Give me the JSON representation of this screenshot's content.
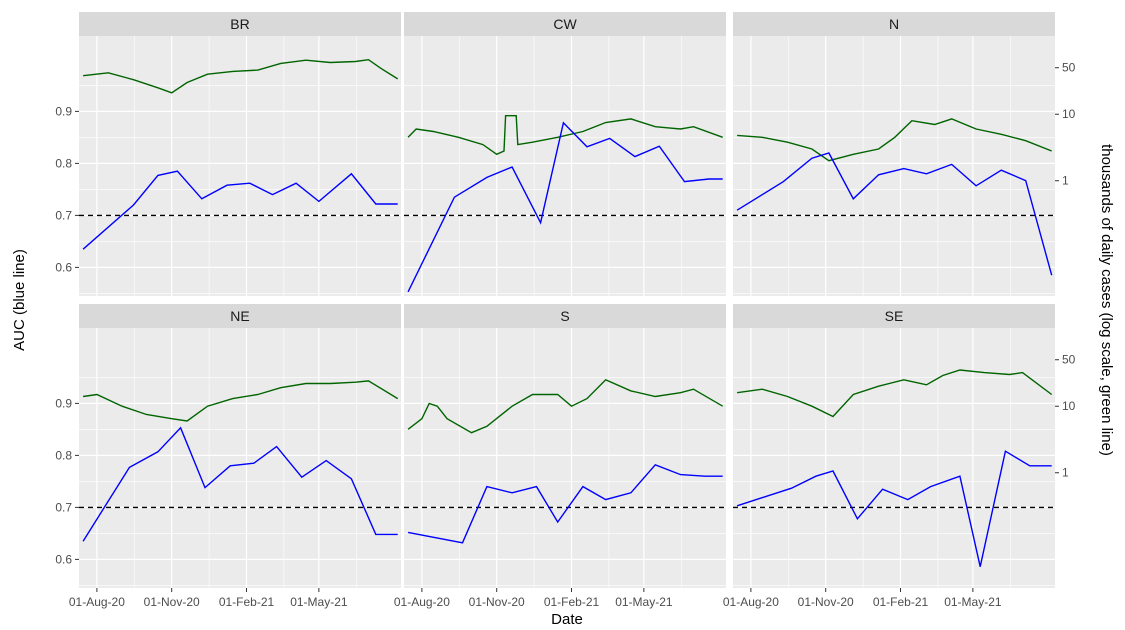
{
  "chart_data": {
    "type": "line",
    "xlabel": "Date",
    "ylabel_left": "AUC (blue line)",
    "ylabel_right": "thousands of daily cases (log scale, green line)",
    "x_ticks": [
      "01-Aug-20",
      "01-Nov-20",
      "01-Feb-21",
      "01-May-21"
    ],
    "x_range": [
      "2020-07-10",
      "2021-08-10"
    ],
    "y_left_ticks": [
      "0.6",
      "0.7",
      "0.8",
      "0.9"
    ],
    "y_left_range": [
      0.545,
      1.045
    ],
    "y_right_ticks": [
      "1",
      "10",
      "50"
    ],
    "y_right_scale": "log",
    "y_right_range": [
      0.0185,
      150
    ],
    "reference_line": {
      "y": 0.7,
      "style": "dashed",
      "color": "#000000"
    },
    "colors": {
      "auc": "#0000ff",
      "cases": "#006400",
      "panel_bg": "#ebebeb",
      "strip_bg": "#d9d9d9",
      "grid": "#ffffff"
    },
    "grid": true,
    "panels": [
      {
        "name": "BR",
        "auc": {
          "dates": [
            "2020-07-15",
            "2020-09-15",
            "2020-10-15",
            "2020-11-08",
            "2020-12-08",
            "2021-01-08",
            "2021-02-05",
            "2021-03-05",
            "2021-04-03",
            "2021-05-01",
            "2021-06-10",
            "2021-07-10",
            "2021-08-06"
          ],
          "values": [
            0.635,
            0.72,
            0.777,
            0.785,
            0.732,
            0.758,
            0.762,
            0.74,
            0.762,
            0.727,
            0.78,
            0.722,
            0.722
          ]
        },
        "cases": {
          "dates": [
            "2020-07-15",
            "2020-08-15",
            "2020-09-15",
            "2020-10-15",
            "2020-11-01",
            "2020-11-20",
            "2020-12-15",
            "2021-01-15",
            "2021-02-15",
            "2021-03-15",
            "2021-04-15",
            "2021-05-15",
            "2021-06-15",
            "2021-07-01",
            "2021-07-15",
            "2021-08-06"
          ],
          "values": [
            38,
            42,
            33,
            25,
            21,
            30,
            40,
            44,
            46,
            58,
            65,
            60,
            62,
            66,
            50,
            34
          ]
        }
      },
      {
        "name": "CW",
        "auc": {
          "dates": [
            "2020-07-15",
            "2020-09-10",
            "2020-10-20",
            "2020-11-20",
            "2020-12-25",
            "2021-01-22",
            "2021-02-20",
            "2021-03-20",
            "2021-04-20",
            "2021-05-20",
            "2021-06-20",
            "2021-07-20",
            "2021-08-06"
          ],
          "values": [
            0.553,
            0.735,
            0.773,
            0.793,
            0.686,
            0.878,
            0.832,
            0.848,
            0.813,
            0.833,
            0.765,
            0.77,
            0.77
          ]
        },
        "cases": {
          "dates": [
            "2020-07-15",
            "2020-07-25",
            "2020-08-15",
            "2020-09-15",
            "2020-10-15",
            "2020-11-01",
            "2020-11-10",
            "2020-11-12",
            "2020-11-25",
            "2020-11-27",
            "2020-12-15",
            "2021-01-15",
            "2021-02-15",
            "2021-03-15",
            "2021-04-15",
            "2021-05-15",
            "2021-06-15",
            "2021-07-01",
            "2021-08-06"
          ],
          "values": [
            4.5,
            6.0,
            5.5,
            4.5,
            3.5,
            2.5,
            2.8,
            9.5,
            9.5,
            3.5,
            3.8,
            4.5,
            5.5,
            7.5,
            8.5,
            6.5,
            6.0,
            6.5,
            4.5
          ]
        }
      },
      {
        "name": "N",
        "auc": {
          "dates": [
            "2020-07-15",
            "2020-09-10",
            "2020-10-15",
            "2020-11-05",
            "2020-12-05",
            "2021-01-05",
            "2021-02-05",
            "2021-03-05",
            "2021-04-05",
            "2021-05-05",
            "2021-06-05",
            "2021-07-05",
            "2021-08-06"
          ],
          "values": [
            0.71,
            0.765,
            0.81,
            0.82,
            0.732,
            0.778,
            0.79,
            0.78,
            0.798,
            0.757,
            0.787,
            0.767,
            0.585
          ]
        },
        "cases": {
          "dates": [
            "2020-07-15",
            "2020-08-15",
            "2020-09-15",
            "2020-10-15",
            "2020-11-05",
            "2020-12-05",
            "2021-01-05",
            "2021-01-25",
            "2021-02-15",
            "2021-03-15",
            "2021-04-05",
            "2021-05-05",
            "2021-06-05",
            "2021-07-05",
            "2021-08-06"
          ],
          "values": [
            4.8,
            4.5,
            3.8,
            3.0,
            2.0,
            2.5,
            3.0,
            4.5,
            8.0,
            7.0,
            8.5,
            6.0,
            5.0,
            4.0,
            2.8
          ]
        }
      },
      {
        "name": "NE",
        "auc": {
          "dates": [
            "2020-07-15",
            "2020-09-10",
            "2020-10-15",
            "2020-11-12",
            "2020-12-12",
            "2021-01-12",
            "2021-02-10",
            "2021-03-10",
            "2021-04-10",
            "2021-05-10",
            "2021-06-10",
            "2021-07-10",
            "2021-08-06"
          ],
          "values": [
            0.635,
            0.777,
            0.807,
            0.853,
            0.738,
            0.78,
            0.785,
            0.817,
            0.758,
            0.79,
            0.755,
            0.648,
            0.648
          ]
        },
        "cases": {
          "dates": [
            "2020-07-15",
            "2020-08-01",
            "2020-09-01",
            "2020-10-01",
            "2020-11-01",
            "2020-11-20",
            "2020-12-15",
            "2021-01-15",
            "2021-02-15",
            "2021-03-15",
            "2021-04-15",
            "2021-05-15",
            "2021-06-15",
            "2021-07-01",
            "2021-08-06"
          ],
          "values": [
            14,
            15,
            10,
            7.5,
            6.5,
            6,
            10,
            13,
            15,
            19,
            22,
            22,
            23,
            24,
            13
          ]
        }
      },
      {
        "name": "S",
        "auc": {
          "dates": [
            "2020-07-15",
            "2020-09-20",
            "2020-10-20",
            "2020-11-20",
            "2020-12-20",
            "2021-01-15",
            "2021-02-15",
            "2021-03-15",
            "2021-04-15",
            "2021-05-15",
            "2021-06-15",
            "2021-07-15",
            "2021-08-06"
          ],
          "values": [
            0.652,
            0.632,
            0.74,
            0.728,
            0.74,
            0.672,
            0.74,
            0.715,
            0.728,
            0.782,
            0.763,
            0.76,
            0.76
          ]
        },
        "cases": {
          "dates": [
            "2020-07-15",
            "2020-08-01",
            "2020-08-10",
            "2020-08-20",
            "2020-09-01",
            "2020-10-01",
            "2020-10-20",
            "2020-11-20",
            "2020-12-15",
            "2021-01-15",
            "2021-02-01",
            "2021-02-20",
            "2021-03-15",
            "2021-04-15",
            "2021-05-15",
            "2021-06-15",
            "2021-07-01",
            "2021-08-06"
          ],
          "values": [
            4.5,
            6.5,
            11,
            10,
            6.5,
            4.0,
            5.0,
            10,
            15,
            15,
            10,
            13,
            25,
            17,
            14,
            16,
            18,
            10
          ]
        }
      },
      {
        "name": "SE",
        "auc": {
          "dates": [
            "2020-07-15",
            "2020-09-20",
            "2020-10-20",
            "2020-11-10",
            "2020-12-10",
            "2021-01-10",
            "2021-02-10",
            "2021-03-10",
            "2021-04-15",
            "2021-05-10",
            "2021-06-10",
            "2021-07-10",
            "2021-08-06"
          ],
          "values": [
            0.703,
            0.737,
            0.76,
            0.77,
            0.678,
            0.735,
            0.715,
            0.74,
            0.76,
            0.586,
            0.808,
            0.78,
            0.78
          ]
        },
        "cases": {
          "dates": [
            "2020-07-15",
            "2020-08-15",
            "2020-09-15",
            "2020-10-15",
            "2020-11-10",
            "2020-12-05",
            "2021-01-05",
            "2021-02-05",
            "2021-03-05",
            "2021-03-25",
            "2021-04-15",
            "2021-05-15",
            "2021-06-15",
            "2021-07-01",
            "2021-08-06"
          ],
          "values": [
            16,
            18,
            14,
            10,
            7,
            15,
            20,
            25,
            21,
            29,
            35,
            32,
            30,
            32,
            15
          ]
        }
      }
    ]
  }
}
